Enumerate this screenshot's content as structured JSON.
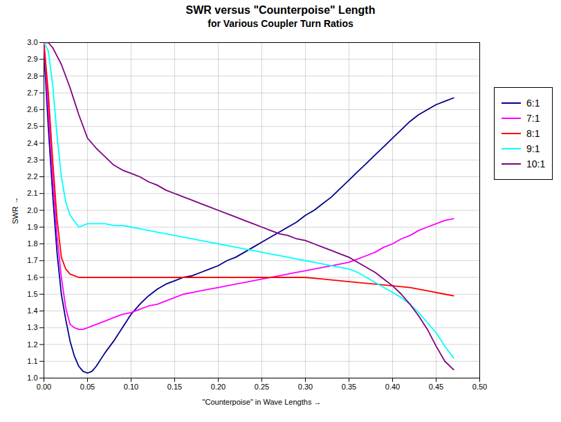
{
  "chart_data": {
    "type": "line",
    "title": "SWR versus \"Counterpoise\" Length",
    "subtitle": "for Various Coupler Turn Ratios",
    "x_label": "\"Counterpoise\" in Wave Lengths",
    "y_label": "SWR",
    "xlim": [
      0.0,
      0.5
    ],
    "ylim": [
      1.0,
      3.0
    ],
    "xticks": [
      {
        "value": 0.0,
        "label": "0.00"
      },
      0.05,
      {
        "value": 0.1,
        "label": "0.10"
      },
      0.15,
      {
        "value": 0.2,
        "label": "0.20"
      },
      0.25,
      {
        "value": 0.3,
        "label": "0.30"
      },
      0.35,
      {
        "value": 0.4,
        "label": "0.40"
      },
      0.45,
      {
        "value": 0.5,
        "label": "0.50"
      }
    ],
    "yticks": [
      {
        "value": 1.0,
        "label": "1.0"
      },
      1.1,
      1.2,
      1.3,
      1.4,
      1.5,
      1.6,
      1.7,
      1.8,
      1.9,
      {
        "value": 2.0,
        "label": "2.0"
      },
      2.1,
      2.2,
      2.3,
      2.4,
      2.5,
      2.6,
      2.7,
      2.8,
      2.9,
      {
        "value": 3.0,
        "label": "3.0"
      }
    ],
    "grid": true,
    "legend": "right",
    "series": [
      {
        "name": "6:1",
        "color": "#00008B",
        "x": [
          0.0,
          0.005,
          0.01,
          0.015,
          0.02,
          0.025,
          0.03,
          0.035,
          0.04,
          0.045,
          0.05,
          0.055,
          0.06,
          0.07,
          0.08,
          0.09,
          0.1,
          0.11,
          0.12,
          0.13,
          0.14,
          0.15,
          0.16,
          0.17,
          0.18,
          0.19,
          0.2,
          0.21,
          0.22,
          0.23,
          0.24,
          0.25,
          0.26,
          0.27,
          0.28,
          0.29,
          0.3,
          0.31,
          0.32,
          0.33,
          0.34,
          0.35,
          0.36,
          0.37,
          0.38,
          0.39,
          0.4,
          0.41,
          0.42,
          0.43,
          0.44,
          0.45,
          0.46,
          0.47
        ],
        "values": [
          2.95,
          2.5,
          2.1,
          1.75,
          1.5,
          1.35,
          1.22,
          1.13,
          1.07,
          1.04,
          1.03,
          1.04,
          1.07,
          1.15,
          1.22,
          1.3,
          1.38,
          1.44,
          1.49,
          1.53,
          1.56,
          1.58,
          1.6,
          1.61,
          1.63,
          1.65,
          1.67,
          1.7,
          1.72,
          1.75,
          1.78,
          1.81,
          1.84,
          1.87,
          1.9,
          1.93,
          1.97,
          2.0,
          2.04,
          2.08,
          2.13,
          2.18,
          2.23,
          2.28,
          2.33,
          2.38,
          2.43,
          2.48,
          2.53,
          2.57,
          2.6,
          2.63,
          2.65,
          2.67
        ]
      },
      {
        "name": "7:1",
        "color": "#FF00FF",
        "x": [
          0.0,
          0.005,
          0.01,
          0.015,
          0.02,
          0.025,
          0.03,
          0.035,
          0.04,
          0.045,
          0.05,
          0.055,
          0.06,
          0.07,
          0.08,
          0.09,
          0.1,
          0.11,
          0.12,
          0.13,
          0.14,
          0.15,
          0.16,
          0.17,
          0.18,
          0.19,
          0.2,
          0.21,
          0.22,
          0.23,
          0.24,
          0.25,
          0.26,
          0.27,
          0.28,
          0.29,
          0.3,
          0.31,
          0.32,
          0.33,
          0.34,
          0.35,
          0.36,
          0.37,
          0.38,
          0.39,
          0.4,
          0.41,
          0.42,
          0.43,
          0.44,
          0.45,
          0.46,
          0.47
        ],
        "values": [
          3.0,
          2.6,
          2.2,
          1.85,
          1.6,
          1.42,
          1.32,
          1.3,
          1.29,
          1.29,
          1.3,
          1.31,
          1.32,
          1.34,
          1.36,
          1.38,
          1.39,
          1.41,
          1.43,
          1.44,
          1.46,
          1.48,
          1.5,
          1.51,
          1.52,
          1.53,
          1.54,
          1.55,
          1.56,
          1.57,
          1.58,
          1.59,
          1.6,
          1.61,
          1.62,
          1.63,
          1.64,
          1.65,
          1.66,
          1.67,
          1.68,
          1.69,
          1.71,
          1.73,
          1.75,
          1.78,
          1.8,
          1.83,
          1.85,
          1.88,
          1.9,
          1.92,
          1.94,
          1.95
        ]
      },
      {
        "name": "8:1",
        "color": "#FF0000",
        "x": [
          0.0,
          0.005,
          0.01,
          0.015,
          0.02,
          0.025,
          0.03,
          0.035,
          0.04,
          0.045,
          0.05,
          0.06,
          0.07,
          0.08,
          0.09,
          0.1,
          0.12,
          0.14,
          0.16,
          0.18,
          0.2,
          0.22,
          0.24,
          0.26,
          0.28,
          0.3,
          0.32,
          0.34,
          0.36,
          0.38,
          0.4,
          0.42,
          0.44,
          0.46,
          0.47
        ],
        "values": [
          3.0,
          2.7,
          2.3,
          1.95,
          1.72,
          1.65,
          1.62,
          1.61,
          1.6,
          1.6,
          1.6,
          1.6,
          1.6,
          1.6,
          1.6,
          1.6,
          1.6,
          1.6,
          1.6,
          1.6,
          1.6,
          1.6,
          1.6,
          1.6,
          1.6,
          1.6,
          1.59,
          1.58,
          1.57,
          1.56,
          1.55,
          1.54,
          1.52,
          1.5,
          1.49
        ]
      },
      {
        "name": "9:1",
        "color": "#00FFFF",
        "x": [
          0.0,
          0.005,
          0.01,
          0.015,
          0.02,
          0.025,
          0.03,
          0.04,
          0.05,
          0.06,
          0.07,
          0.08,
          0.09,
          0.1,
          0.11,
          0.12,
          0.13,
          0.14,
          0.15,
          0.16,
          0.17,
          0.18,
          0.19,
          0.2,
          0.21,
          0.22,
          0.23,
          0.24,
          0.25,
          0.26,
          0.27,
          0.28,
          0.29,
          0.3,
          0.31,
          0.32,
          0.33,
          0.34,
          0.35,
          0.36,
          0.37,
          0.38,
          0.39,
          0.4,
          0.41,
          0.42,
          0.43,
          0.44,
          0.45,
          0.46,
          0.47
        ],
        "values": [
          3.0,
          2.95,
          2.75,
          2.45,
          2.2,
          2.05,
          1.97,
          1.9,
          1.92,
          1.92,
          1.92,
          1.91,
          1.91,
          1.9,
          1.89,
          1.88,
          1.87,
          1.86,
          1.85,
          1.84,
          1.83,
          1.82,
          1.81,
          1.8,
          1.79,
          1.78,
          1.77,
          1.76,
          1.75,
          1.74,
          1.73,
          1.72,
          1.71,
          1.7,
          1.69,
          1.68,
          1.67,
          1.66,
          1.65,
          1.63,
          1.6,
          1.57,
          1.54,
          1.51,
          1.48,
          1.44,
          1.39,
          1.33,
          1.27,
          1.19,
          1.12
        ]
      },
      {
        "name": "10:1",
        "color": "#800080",
        "x": [
          0.0,
          0.005,
          0.01,
          0.015,
          0.02,
          0.025,
          0.03,
          0.035,
          0.04,
          0.045,
          0.05,
          0.06,
          0.07,
          0.08,
          0.09,
          0.1,
          0.11,
          0.12,
          0.13,
          0.14,
          0.15,
          0.16,
          0.17,
          0.18,
          0.19,
          0.2,
          0.21,
          0.22,
          0.23,
          0.24,
          0.25,
          0.26,
          0.27,
          0.28,
          0.29,
          0.3,
          0.31,
          0.32,
          0.33,
          0.34,
          0.35,
          0.36,
          0.37,
          0.38,
          0.39,
          0.4,
          0.41,
          0.42,
          0.43,
          0.44,
          0.45,
          0.46,
          0.47
        ],
        "values": [
          3.0,
          3.0,
          2.97,
          2.92,
          2.87,
          2.8,
          2.73,
          2.65,
          2.57,
          2.5,
          2.43,
          2.37,
          2.32,
          2.27,
          2.24,
          2.22,
          2.2,
          2.17,
          2.15,
          2.12,
          2.1,
          2.08,
          2.06,
          2.04,
          2.02,
          2.0,
          1.98,
          1.96,
          1.94,
          1.92,
          1.9,
          1.88,
          1.86,
          1.85,
          1.83,
          1.82,
          1.8,
          1.78,
          1.76,
          1.74,
          1.72,
          1.69,
          1.66,
          1.63,
          1.59,
          1.55,
          1.5,
          1.44,
          1.37,
          1.29,
          1.19,
          1.1,
          1.05
        ]
      }
    ]
  }
}
